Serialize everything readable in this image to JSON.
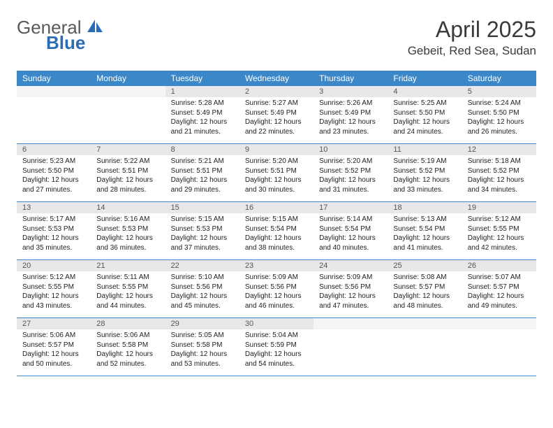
{
  "logo": {
    "text1": "General",
    "text2": "Blue"
  },
  "title": "April 2025",
  "location": "Gebeit, Red Sea, Sudan",
  "colors": {
    "header_bg": "#3c87c7",
    "header_text": "#ffffff",
    "daynum_bg": "#e8e8e8",
    "border": "#3c87c7",
    "title_color": "#3a3a3a",
    "logo_gray": "#5a5a5a",
    "logo_blue": "#2a6db5"
  },
  "day_names": [
    "Sunday",
    "Monday",
    "Tuesday",
    "Wednesday",
    "Thursday",
    "Friday",
    "Saturday"
  ],
  "weeks": [
    [
      {
        "blank": true
      },
      {
        "blank": true
      },
      {
        "num": "1",
        "sunrise": "5:28 AM",
        "sunset": "5:49 PM",
        "daylight": "12 hours and 21 minutes."
      },
      {
        "num": "2",
        "sunrise": "5:27 AM",
        "sunset": "5:49 PM",
        "daylight": "12 hours and 22 minutes."
      },
      {
        "num": "3",
        "sunrise": "5:26 AM",
        "sunset": "5:49 PM",
        "daylight": "12 hours and 23 minutes."
      },
      {
        "num": "4",
        "sunrise": "5:25 AM",
        "sunset": "5:50 PM",
        "daylight": "12 hours and 24 minutes."
      },
      {
        "num": "5",
        "sunrise": "5:24 AM",
        "sunset": "5:50 PM",
        "daylight": "12 hours and 26 minutes."
      }
    ],
    [
      {
        "num": "6",
        "sunrise": "5:23 AM",
        "sunset": "5:50 PM",
        "daylight": "12 hours and 27 minutes."
      },
      {
        "num": "7",
        "sunrise": "5:22 AM",
        "sunset": "5:51 PM",
        "daylight": "12 hours and 28 minutes."
      },
      {
        "num": "8",
        "sunrise": "5:21 AM",
        "sunset": "5:51 PM",
        "daylight": "12 hours and 29 minutes."
      },
      {
        "num": "9",
        "sunrise": "5:20 AM",
        "sunset": "5:51 PM",
        "daylight": "12 hours and 30 minutes."
      },
      {
        "num": "10",
        "sunrise": "5:20 AM",
        "sunset": "5:52 PM",
        "daylight": "12 hours and 31 minutes."
      },
      {
        "num": "11",
        "sunrise": "5:19 AM",
        "sunset": "5:52 PM",
        "daylight": "12 hours and 33 minutes."
      },
      {
        "num": "12",
        "sunrise": "5:18 AM",
        "sunset": "5:52 PM",
        "daylight": "12 hours and 34 minutes."
      }
    ],
    [
      {
        "num": "13",
        "sunrise": "5:17 AM",
        "sunset": "5:53 PM",
        "daylight": "12 hours and 35 minutes."
      },
      {
        "num": "14",
        "sunrise": "5:16 AM",
        "sunset": "5:53 PM",
        "daylight": "12 hours and 36 minutes."
      },
      {
        "num": "15",
        "sunrise": "5:15 AM",
        "sunset": "5:53 PM",
        "daylight": "12 hours and 37 minutes."
      },
      {
        "num": "16",
        "sunrise": "5:15 AM",
        "sunset": "5:54 PM",
        "daylight": "12 hours and 38 minutes."
      },
      {
        "num": "17",
        "sunrise": "5:14 AM",
        "sunset": "5:54 PM",
        "daylight": "12 hours and 40 minutes."
      },
      {
        "num": "18",
        "sunrise": "5:13 AM",
        "sunset": "5:54 PM",
        "daylight": "12 hours and 41 minutes."
      },
      {
        "num": "19",
        "sunrise": "5:12 AM",
        "sunset": "5:55 PM",
        "daylight": "12 hours and 42 minutes."
      }
    ],
    [
      {
        "num": "20",
        "sunrise": "5:12 AM",
        "sunset": "5:55 PM",
        "daylight": "12 hours and 43 minutes."
      },
      {
        "num": "21",
        "sunrise": "5:11 AM",
        "sunset": "5:55 PM",
        "daylight": "12 hours and 44 minutes."
      },
      {
        "num": "22",
        "sunrise": "5:10 AM",
        "sunset": "5:56 PM",
        "daylight": "12 hours and 45 minutes."
      },
      {
        "num": "23",
        "sunrise": "5:09 AM",
        "sunset": "5:56 PM",
        "daylight": "12 hours and 46 minutes."
      },
      {
        "num": "24",
        "sunrise": "5:09 AM",
        "sunset": "5:56 PM",
        "daylight": "12 hours and 47 minutes."
      },
      {
        "num": "25",
        "sunrise": "5:08 AM",
        "sunset": "5:57 PM",
        "daylight": "12 hours and 48 minutes."
      },
      {
        "num": "26",
        "sunrise": "5:07 AM",
        "sunset": "5:57 PM",
        "daylight": "12 hours and 49 minutes."
      }
    ],
    [
      {
        "num": "27",
        "sunrise": "5:06 AM",
        "sunset": "5:57 PM",
        "daylight": "12 hours and 50 minutes."
      },
      {
        "num": "28",
        "sunrise": "5:06 AM",
        "sunset": "5:58 PM",
        "daylight": "12 hours and 52 minutes."
      },
      {
        "num": "29",
        "sunrise": "5:05 AM",
        "sunset": "5:58 PM",
        "daylight": "12 hours and 53 minutes."
      },
      {
        "num": "30",
        "sunrise": "5:04 AM",
        "sunset": "5:59 PM",
        "daylight": "12 hours and 54 minutes."
      },
      {
        "blank": true
      },
      {
        "blank": true
      },
      {
        "blank": true
      }
    ]
  ],
  "labels": {
    "sunrise": "Sunrise:",
    "sunset": "Sunset:",
    "daylight": "Daylight:"
  }
}
